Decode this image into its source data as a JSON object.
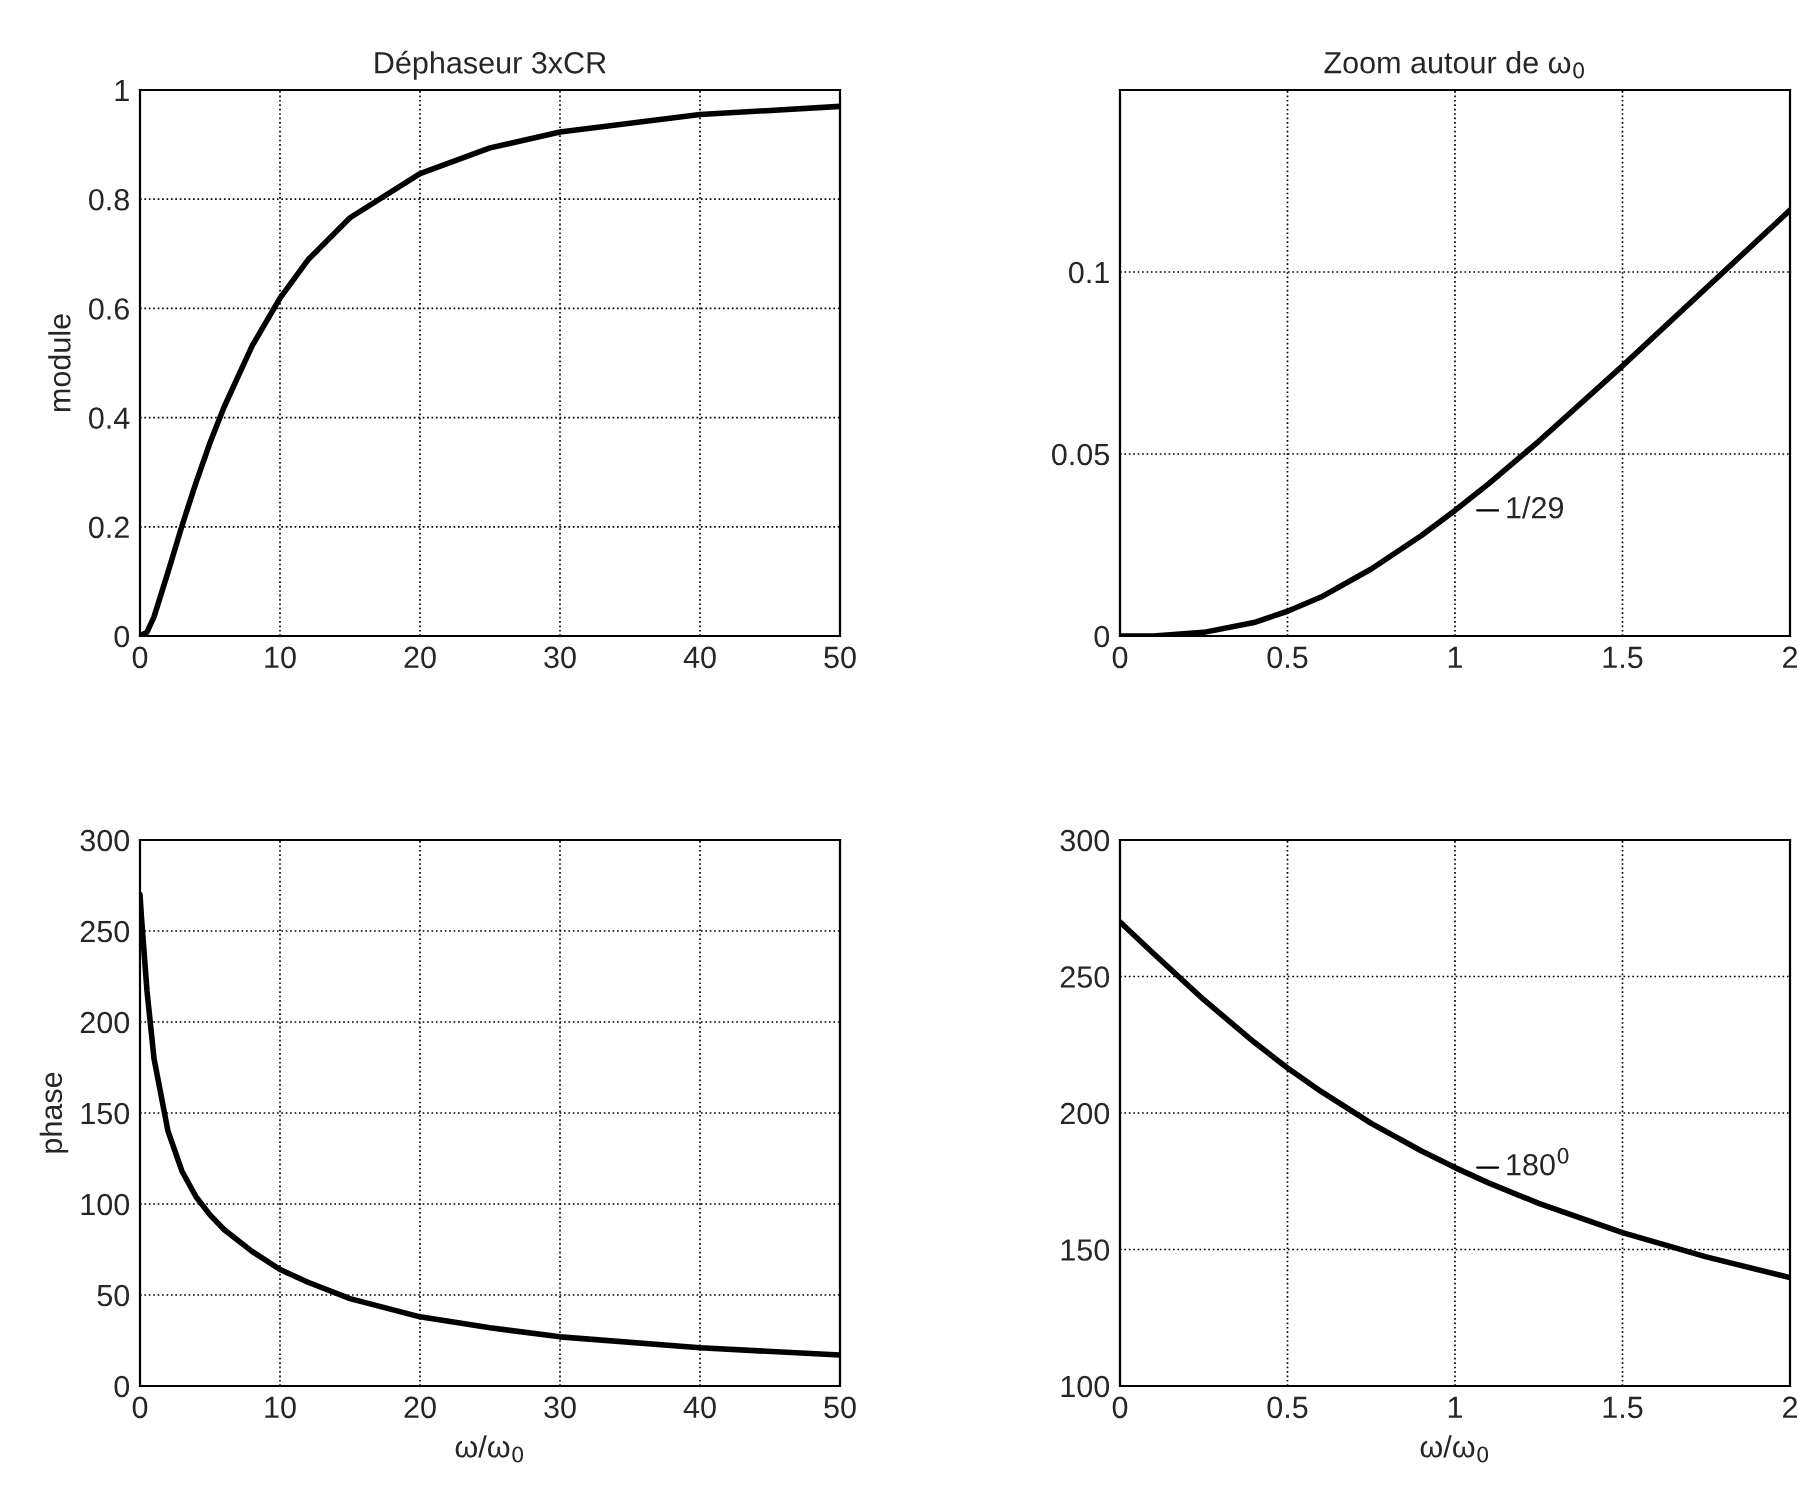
{
  "chart_data": [
    {
      "type": "line",
      "title": "Déphaseur 3xCR",
      "ylabel": "module",
      "x": [
        0,
        0.5,
        1,
        2,
        3,
        4,
        5,
        6,
        8,
        10,
        12,
        15,
        20,
        25,
        30,
        40,
        50
      ],
      "series": [
        {
          "color": "#000000",
          "values": [
            0,
            0.007,
            0.035,
            0.117,
            0.202,
            0.281,
            0.354,
            0.419,
            0.531,
            0.619,
            0.689,
            0.766,
            0.847,
            0.894,
            0.923,
            0.955,
            0.97
          ]
        }
      ],
      "xlim": [
        0,
        50
      ],
      "xticks": [
        0,
        10,
        20,
        30,
        40,
        50
      ],
      "ylim": [
        0,
        1
      ],
      "yticks": [
        0,
        0.2,
        0.4,
        0.6,
        0.8,
        1
      ],
      "grid": true
    },
    {
      "type": "line",
      "title": "Zoom autour de ω$_{0}$",
      "x": [
        0,
        0.1,
        0.25,
        0.4,
        0.5,
        0.6,
        0.75,
        0.9,
        1,
        1.1,
        1.25,
        1.5,
        1.75,
        2
      ],
      "series": [
        {
          "color": "#000000",
          "values": [
            0,
            0,
            0.001,
            0.0037,
            0.0068,
            0.0107,
            0.0184,
            0.0276,
            0.0345,
            0.0418,
            0.0535,
            0.0742,
            0.0956,
            0.117
          ]
        }
      ],
      "xlim": [
        0,
        2
      ],
      "xticks": [
        0,
        0.5,
        1,
        1.5,
        2
      ],
      "ylim": [
        0,
        0.15
      ],
      "yticks": [
        0,
        0.05,
        0.1
      ],
      "grid": true,
      "annotations": [
        {
          "text": "1/29",
          "x": 1,
          "y": 0.0345
        }
      ]
    },
    {
      "type": "line",
      "xlabel": "ω/ω$_{0}$",
      "ylabel": "phase",
      "x": [
        0,
        0.1,
        0.5,
        1,
        2,
        3,
        4,
        5,
        6,
        8,
        10,
        12,
        15,
        20,
        25,
        30,
        40,
        50
      ],
      "series": [
        {
          "color": "#000000",
          "values": [
            270,
            258,
            217,
            180,
            140,
            118,
            104,
            94,
            86,
            74,
            64,
            57,
            48,
            38,
            32,
            27,
            21,
            17
          ]
        }
      ],
      "xlim": [
        0,
        50
      ],
      "xticks": [
        0,
        10,
        20,
        30,
        40,
        50
      ],
      "ylim": [
        0,
        300
      ],
      "yticks": [
        0,
        50,
        100,
        150,
        200,
        250,
        300
      ],
      "grid": true
    },
    {
      "type": "line",
      "xlabel": "ω/ω$_{0}$",
      "x": [
        0,
        0.1,
        0.25,
        0.4,
        0.5,
        0.6,
        0.75,
        0.9,
        1,
        1.1,
        1.25,
        1.5,
        1.75,
        2
      ],
      "series": [
        {
          "color": "#000000",
          "values": [
            270,
            258.4,
            241.5,
            226.0,
            216.5,
            207.9,
            196.2,
            186.1,
            180,
            174.4,
            166.9,
            156.2,
            147.3,
            139.7
          ]
        }
      ],
      "xlim": [
        0,
        2
      ],
      "xticks": [
        0,
        0.5,
        1,
        1.5,
        2
      ],
      "ylim": [
        100,
        300
      ],
      "yticks": [
        100,
        150,
        200,
        250,
        300
      ],
      "grid": true,
      "annotations": [
        {
          "text": "180$^{0}$",
          "x": 1,
          "y": 180
        }
      ]
    }
  ]
}
